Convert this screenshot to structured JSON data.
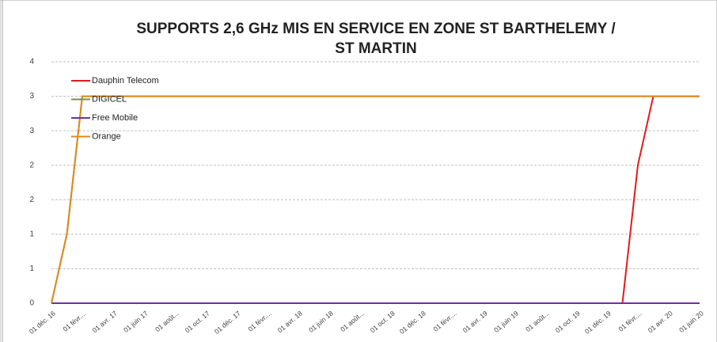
{
  "chart_data": {
    "type": "line",
    "title": [
      "SUPPORTS 2,6 GHz MIS EN SERVICE  EN ZONE ST BARTHELEMY /",
      "ST MARTIN"
    ],
    "categories": [
      "01 déc. 16",
      null,
      "01 févr....",
      null,
      "01 avr. 17",
      null,
      "01 juin 17",
      null,
      "01 août...",
      null,
      "01 oct. 17",
      null,
      "01 déc. 17",
      null,
      "01 févr....",
      null,
      "01 avr. 18",
      null,
      "01 juin 18",
      null,
      "01 août...",
      null,
      "01 oct. 18",
      null,
      "01 déc. 18",
      null,
      "01 févr....",
      null,
      "01 avr. 19",
      null,
      "01 juin 19",
      null,
      "01 août...",
      null,
      "01 oct. 19",
      null,
      "01 déc. 19",
      null,
      "01 févr....",
      null,
      "01 avr. 20",
      null,
      "01 juin 20"
    ],
    "series": [
      {
        "name": "Dauphin Telecom",
        "color": "#e31a1c",
        "values": [
          0,
          0,
          0,
          0,
          0,
          0,
          0,
          0,
          0,
          0,
          0,
          0,
          0,
          0,
          0,
          0,
          0,
          0,
          0,
          0,
          0,
          0,
          0,
          0,
          0,
          0,
          0,
          0,
          0,
          0,
          0,
          0,
          0,
          0,
          0,
          0,
          0,
          0,
          2,
          3,
          3,
          3,
          3
        ]
      },
      {
        "name": "DIGICEL",
        "color": "#77933c",
        "values": [
          0,
          1,
          3,
          3,
          3,
          3,
          3,
          3,
          3,
          3,
          3,
          3,
          3,
          3,
          3,
          3,
          3,
          3,
          3,
          3,
          3,
          3,
          3,
          3,
          3,
          3,
          3,
          3,
          3,
          3,
          3,
          3,
          3,
          3,
          3,
          3,
          3,
          3,
          3,
          3,
          3,
          3,
          3
        ]
      },
      {
        "name": "Free Mobile",
        "color": "#7030a0",
        "values": [
          0,
          0,
          0,
          0,
          0,
          0,
          0,
          0,
          0,
          0,
          0,
          0,
          0,
          0,
          0,
          0,
          0,
          0,
          0,
          0,
          0,
          0,
          0,
          0,
          0,
          0,
          0,
          0,
          0,
          0,
          0,
          0,
          0,
          0,
          0,
          0,
          0,
          0,
          0,
          0,
          0,
          0,
          0
        ]
      },
      {
        "name": "Orange",
        "color": "#e08a1e",
        "values": [
          0,
          1,
          3,
          3,
          3,
          3,
          3,
          3,
          3,
          3,
          3,
          3,
          3,
          3,
          3,
          3,
          3,
          3,
          3,
          3,
          3,
          3,
          3,
          3,
          3,
          3,
          3,
          3,
          3,
          3,
          3,
          3,
          3,
          3,
          3,
          3,
          3,
          3,
          3,
          3,
          3,
          3,
          3
        ]
      }
    ],
    "ylim": [
      0,
      3.5
    ],
    "yticks": [
      0,
      {
        "value": 0.5,
        "label": "1"
      },
      1,
      {
        "value": 1.5,
        "label": "2"
      },
      2,
      {
        "value": 2.5,
        "label": "3"
      },
      3,
      {
        "value": 3.5,
        "label": "4"
      }
    ],
    "grid": true,
    "legend": "top-left"
  }
}
